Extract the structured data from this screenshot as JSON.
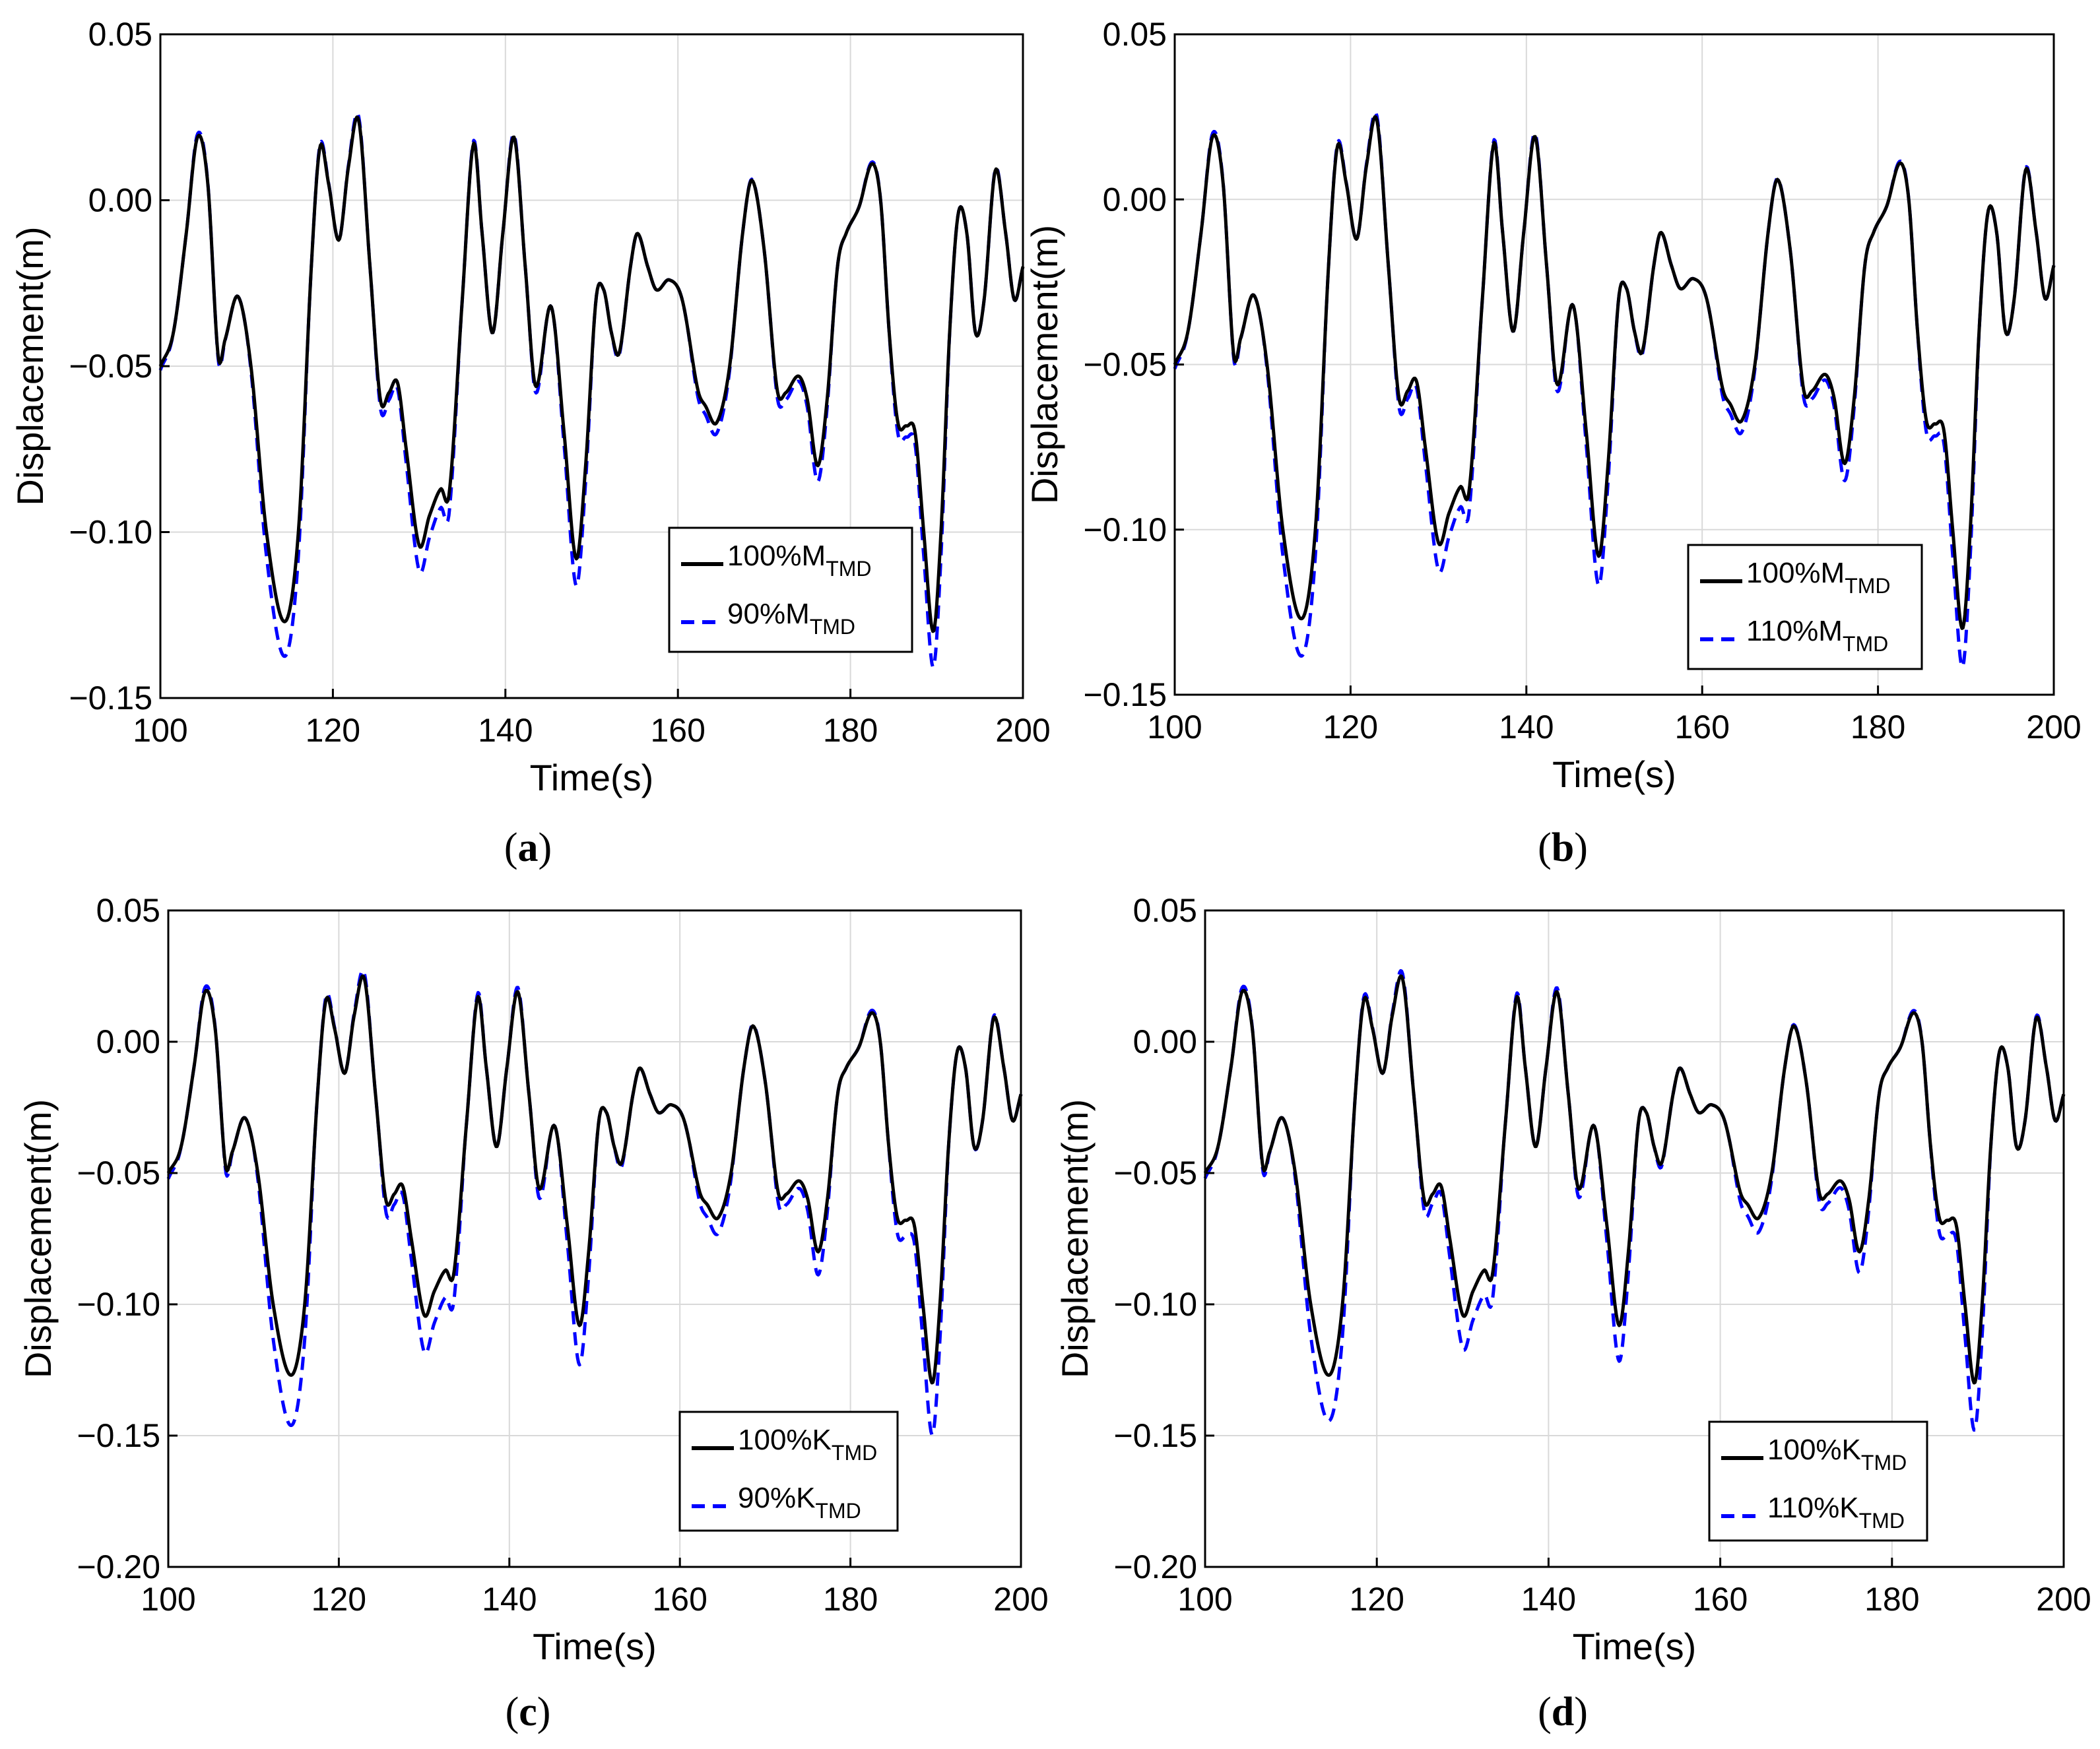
{
  "chart_data": [
    {
      "id": "a",
      "type": "line",
      "caption": "a",
      "xlabel": "Time(s)",
      "ylabel": "Displacement(m)",
      "xlim": [
        100,
        200
      ],
      "ylim": [
        -0.15,
        0.05
      ],
      "xticks": [
        100,
        120,
        140,
        160,
        180,
        200
      ],
      "yticks": [
        -0.15,
        -0.1,
        -0.05,
        0.0,
        0.05
      ],
      "ytick_labels": [
        "−0.15",
        "−0.10",
        "−0.05",
        "0.00",
        "0.05"
      ],
      "grid": true,
      "legend_position": "lower-right",
      "series": [
        {
          "name": "100%M",
          "label_main": "100%M",
          "label_sub": "TMD",
          "style": "solid",
          "color": "#000000"
        },
        {
          "name": "90%M",
          "label_main": "90%M",
          "label_sub": "TMD",
          "style": "dashed",
          "color": "#0000ff",
          "scale": 1.12
        }
      ]
    },
    {
      "id": "b",
      "type": "line",
      "caption": "b",
      "xlabel": "Time(s)",
      "ylabel": "Displacement(m)",
      "xlim": [
        100,
        200
      ],
      "ylim": [
        -0.15,
        0.05
      ],
      "xticks": [
        100,
        120,
        140,
        160,
        180,
        200
      ],
      "yticks": [
        -0.15,
        -0.1,
        -0.05,
        0.0,
        0.05
      ],
      "ytick_labels": [
        "−0.15",
        "−0.10",
        "−0.05",
        "0.00",
        "0.05"
      ],
      "grid": true,
      "legend_position": "lower-right",
      "series": [
        {
          "name": "100%M",
          "label_main": "100%M",
          "label_sub": "TMD",
          "style": "solid",
          "color": "#000000"
        },
        {
          "name": "110%M",
          "label_main": "110%M",
          "label_sub": "TMD",
          "style": "dashed",
          "color": "#0000ff",
          "scale": 1.13
        }
      ]
    },
    {
      "id": "c",
      "type": "line",
      "caption": "c",
      "xlabel": "Time(s)",
      "ylabel": "Displacement(m)",
      "xlim": [
        100,
        200
      ],
      "ylim": [
        -0.2,
        0.05
      ],
      "xticks": [
        100,
        120,
        140,
        160,
        180,
        200
      ],
      "yticks": [
        -0.2,
        -0.15,
        -0.1,
        -0.05,
        0.0,
        0.05
      ],
      "ytick_labels": [
        "−0.20",
        "−0.15",
        "−0.10",
        "−0.05",
        "0.00",
        "0.05"
      ],
      "grid": true,
      "legend_position": "lower-right",
      "series": [
        {
          "name": "100%K",
          "label_main": "100%K",
          "label_sub": "TMD",
          "style": "solid",
          "color": "#000000"
        },
        {
          "name": "90%K",
          "label_main": "90%K",
          "label_sub": "TMD",
          "style": "dashed",
          "color": "#0000ff",
          "scale": 1.22
        }
      ]
    },
    {
      "id": "d",
      "type": "line",
      "caption": "d",
      "xlabel": "Time(s)",
      "ylabel": "Displacement(m)",
      "xlim": [
        100,
        200
      ],
      "ylim": [
        -0.2,
        0.05
      ],
      "xticks": [
        100,
        120,
        140,
        160,
        180,
        200
      ],
      "yticks": [
        -0.2,
        -0.15,
        -0.1,
        -0.05,
        0.0,
        0.05
      ],
      "ytick_labels": [
        "−0.20",
        "−0.15",
        "−0.10",
        "−0.05",
        "0.00",
        "0.05"
      ],
      "grid": true,
      "legend_position": "lower-right",
      "series": [
        {
          "name": "100%K",
          "label_main": "100%K",
          "label_sub": "TMD",
          "style": "solid",
          "color": "#000000"
        },
        {
          "name": "110%K",
          "label_main": "110%K",
          "label_sub": "TMD",
          "style": "dashed",
          "color": "#0000ff",
          "scale": 1.2
        }
      ]
    }
  ],
  "base_response": {
    "description_units": "time in s, displacement in m",
    "points": [
      [
        100,
        -0.05
      ],
      [
        101.5,
        -0.04
      ],
      [
        103,
        -0.01
      ],
      [
        104.3,
        0.019
      ],
      [
        105.5,
        0.005
      ],
      [
        106.7,
        -0.047
      ],
      [
        107.5,
        -0.042
      ],
      [
        109,
        -0.029
      ],
      [
        110.5,
        -0.05
      ],
      [
        112.3,
        -0.1
      ],
      [
        114.4,
        -0.127
      ],
      [
        116,
        -0.1
      ],
      [
        117.5,
        -0.02
      ],
      [
        118.5,
        0.016
      ],
      [
        119.5,
        0.005
      ],
      [
        120.7,
        -0.012
      ],
      [
        121.8,
        0.01
      ],
      [
        123,
        0.024
      ],
      [
        124.3,
        -0.02
      ],
      [
        125.5,
        -0.06
      ],
      [
        126.5,
        -0.058
      ],
      [
        127.5,
        -0.055
      ],
      [
        128.5,
        -0.075
      ],
      [
        130,
        -0.104
      ],
      [
        131.2,
        -0.095
      ],
      [
        132.5,
        -0.087
      ],
      [
        133.5,
        -0.088
      ],
      [
        135,
        -0.03
      ],
      [
        136.3,
        0.017
      ],
      [
        137.3,
        -0.01
      ],
      [
        138.5,
        -0.04
      ],
      [
        139.7,
        -0.01
      ],
      [
        141,
        0.019
      ],
      [
        142.3,
        -0.02
      ],
      [
        143.5,
        -0.056
      ],
      [
        145.3,
        -0.032
      ],
      [
        146.8,
        -0.07
      ],
      [
        148.2,
        -0.108
      ],
      [
        149.3,
        -0.08
      ],
      [
        150.5,
        -0.03
      ],
      [
        151.4,
        -0.027
      ],
      [
        152.3,
        -0.04
      ],
      [
        153.2,
        -0.046
      ],
      [
        154.5,
        -0.02
      ],
      [
        155.3,
        -0.01
      ],
      [
        156.5,
        -0.02
      ],
      [
        157.5,
        -0.027
      ],
      [
        159,
        -0.024
      ],
      [
        160.5,
        -0.03
      ],
      [
        162.3,
        -0.057
      ],
      [
        163.2,
        -0.062
      ],
      [
        164.5,
        -0.067
      ],
      [
        166,
        -0.05
      ],
      [
        167.5,
        -0.01
      ],
      [
        168.6,
        0.006
      ],
      [
        170,
        -0.015
      ],
      [
        171.5,
        -0.057
      ],
      [
        172.5,
        -0.058
      ],
      [
        174,
        -0.053
      ],
      [
        175,
        -0.06
      ],
      [
        176.2,
        -0.08
      ],
      [
        177.3,
        -0.06
      ],
      [
        178.5,
        -0.02
      ],
      [
        179.5,
        -0.01
      ],
      [
        181,
        -0.002
      ],
      [
        182.5,
        0.011
      ],
      [
        183.5,
        0.0
      ],
      [
        184.5,
        -0.04
      ],
      [
        185.5,
        -0.067
      ],
      [
        186.5,
        -0.068
      ],
      [
        187.5,
        -0.07
      ],
      [
        188.5,
        -0.1
      ],
      [
        189.6,
        -0.13
      ],
      [
        190.5,
        -0.1
      ],
      [
        191.5,
        -0.04
      ],
      [
        192.5,
        -0.004
      ],
      [
        193.5,
        -0.01
      ],
      [
        194.5,
        -0.04
      ],
      [
        195.5,
        -0.03
      ],
      [
        196.8,
        0.009
      ],
      [
        198,
        -0.01
      ],
      [
        199,
        -0.03
      ],
      [
        200,
        -0.02
      ]
    ]
  }
}
